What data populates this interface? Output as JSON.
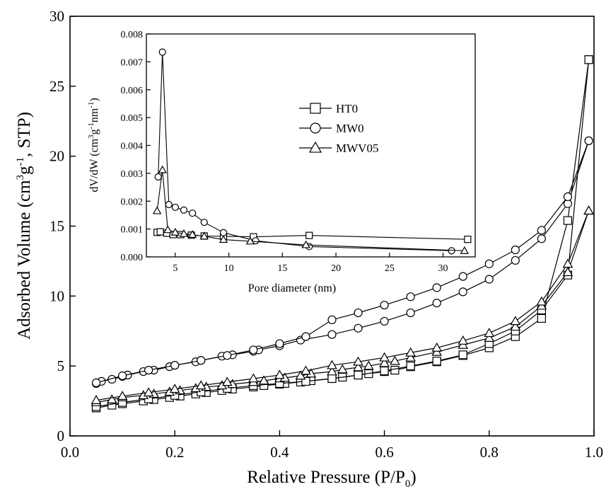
{
  "chart_data": [
    {
      "type": "line",
      "role": "main",
      "xlabel": "Relative Pressure (P/P",
      "xlabel_sub": "0",
      "xlabel_tail": ")",
      "ylabel_pre": "Adsorbed Volume (cm",
      "ylabel_sup": "3",
      "ylabel_mid": "g",
      "ylabel_sup2": "-1",
      "ylabel_tail": ", STP)",
      "xlim": [
        0.0,
        1.0
      ],
      "ylim": [
        0,
        30
      ],
      "xticks": [
        0.0,
        0.2,
        0.4,
        0.6,
        0.8,
        1.0
      ],
      "xtick_labels": [
        "0.0",
        "0.2",
        "0.4",
        "0.6",
        "0.8",
        "1.0"
      ],
      "yticks": [
        0,
        5,
        10,
        15,
        20,
        25,
        30
      ],
      "ytick_labels": [
        "0",
        "5",
        "10",
        "15",
        "20",
        "25",
        "30"
      ],
      "grid": false,
      "series": [
        {
          "name": "HT0",
          "marker": "square",
          "adsorption": {
            "x": [
              0.05,
              0.08,
              0.1,
              0.14,
              0.16,
              0.19,
              0.21,
              0.24,
              0.26,
              0.29,
              0.31,
              0.35,
              0.37,
              0.4,
              0.41,
              0.44,
              0.46,
              0.5,
              0.52,
              0.55,
              0.57,
              0.6,
              0.62,
              0.65,
              0.7,
              0.75,
              0.8,
              0.85,
              0.9,
              0.95,
              0.99
            ],
            "y": [
              2.0,
              2.2,
              2.3,
              2.5,
              2.6,
              2.75,
              2.85,
              3.0,
              3.1,
              3.25,
              3.35,
              3.5,
              3.6,
              3.7,
              3.75,
              3.85,
              3.95,
              4.1,
              4.2,
              4.35,
              4.45,
              4.6,
              4.7,
              4.95,
              5.3,
              5.75,
              6.3,
              7.1,
              8.4,
              15.4,
              26.9
            ]
          },
          "desorption": {
            "x": [
              0.99,
              0.95,
              0.9,
              0.85,
              0.8,
              0.75,
              0.7,
              0.65,
              0.6,
              0.55,
              0.5,
              0.45,
              0.4,
              0.35,
              0.3,
              0.25,
              0.2,
              0.15,
              0.1,
              0.05
            ],
            "y": [
              26.9,
              11.5,
              9.0,
              7.5,
              6.6,
              5.8,
              5.35,
              5.0,
              4.65,
              4.35,
              4.1,
              3.9,
              3.75,
              3.6,
              3.4,
              3.15,
              2.9,
              2.65,
              2.4,
              2.1
            ]
          }
        },
        {
          "name": "MW0",
          "marker": "circle",
          "adsorption": {
            "x": [
              0.05,
              0.06,
              0.08,
              0.1,
              0.11,
              0.14,
              0.16,
              0.19,
              0.2,
              0.24,
              0.25,
              0.29,
              0.31,
              0.35,
              0.36,
              0.4,
              0.44,
              0.5,
              0.55,
              0.6,
              0.65,
              0.7,
              0.75,
              0.8,
              0.85,
              0.9,
              0.95,
              0.99
            ],
            "y": [
              3.75,
              3.9,
              4.05,
              4.25,
              4.35,
              4.6,
              4.7,
              4.95,
              5.05,
              5.3,
              5.4,
              5.7,
              5.8,
              6.05,
              6.15,
              6.45,
              6.85,
              7.25,
              7.7,
              8.2,
              8.8,
              9.5,
              10.3,
              11.2,
              12.55,
              14.1,
              16.6,
              21.1
            ]
          },
          "desorption": {
            "x": [
              0.99,
              0.95,
              0.9,
              0.85,
              0.8,
              0.75,
              0.7,
              0.65,
              0.6,
              0.55,
              0.5,
              0.45,
              0.4,
              0.35,
              0.3,
              0.25,
              0.2,
              0.15,
              0.1,
              0.05
            ],
            "y": [
              21.1,
              17.1,
              14.7,
              13.3,
              12.3,
              11.4,
              10.6,
              9.95,
              9.35,
              8.8,
              8.3,
              7.1,
              6.6,
              6.15,
              5.75,
              5.4,
              5.05,
              4.7,
              4.3,
              3.8
            ]
          }
        },
        {
          "name": "MWV05",
          "marker": "triangle",
          "adsorption": {
            "x": [
              0.05,
              0.08,
              0.1,
              0.14,
              0.16,
              0.19,
              0.21,
              0.24,
              0.26,
              0.29,
              0.31,
              0.35,
              0.37,
              0.4,
              0.41,
              0.44,
              0.46,
              0.5,
              0.52,
              0.55,
              0.57,
              0.6,
              0.62,
              0.65,
              0.7,
              0.75,
              0.8,
              0.85,
              0.9,
              0.95,
              0.99
            ],
            "y": [
              2.4,
              2.6,
              2.75,
              2.9,
              3.0,
              3.15,
              3.25,
              3.4,
              3.5,
              3.6,
              3.7,
              3.85,
              3.95,
              4.1,
              4.15,
              4.3,
              4.45,
              4.6,
              4.75,
              4.9,
              5.0,
              5.2,
              5.35,
              5.6,
              6.0,
              6.5,
              7.0,
              7.8,
              9.3,
              11.7,
              16.1
            ]
          },
          "desorption": {
            "x": [
              0.99,
              0.95,
              0.9,
              0.85,
              0.8,
              0.75,
              0.7,
              0.65,
              0.6,
              0.55,
              0.5,
              0.45,
              0.4,
              0.35,
              0.3,
              0.25,
              0.2,
              0.15,
              0.1,
              0.05
            ],
            "y": [
              16.1,
              12.3,
              9.6,
              8.2,
              7.35,
              6.8,
              6.3,
              5.95,
              5.6,
              5.3,
              5.05,
              4.65,
              4.35,
              4.1,
              3.85,
              3.6,
              3.35,
              3.1,
              2.85,
              2.55
            ]
          }
        }
      ]
    },
    {
      "type": "line",
      "role": "inset",
      "xlabel": "Pore diameter (nm)",
      "ylabel_pre": "dV/dW (cm",
      "ylabel_sup": "3",
      "ylabel_mid": "g",
      "ylabel_sup2": "-1",
      "ylabel_mid2": "nm",
      "ylabel_sup3": "-1",
      "ylabel_tail": ")",
      "xlim": [
        2.3,
        33
      ],
      "ylim": [
        0.0,
        0.008
      ],
      "xticks": [
        5,
        10,
        15,
        20,
        25,
        30
      ],
      "xtick_labels": [
        "5",
        "10",
        "15",
        "20",
        "25",
        "30"
      ],
      "yticks": [
        0.0,
        0.001,
        0.002,
        0.003,
        0.004,
        0.005,
        0.006,
        0.007,
        0.008
      ],
      "ytick_labels": [
        "0.000",
        "0.001",
        "0.002",
        "0.003",
        "0.004",
        "0.005",
        "0.006",
        "0.007",
        "0.008"
      ],
      "grid": false,
      "legend_position": "center",
      "series": [
        {
          "name": "HT0",
          "marker": "square",
          "x": [
            3.3,
            3.6,
            4.2,
            4.8,
            5.5,
            6.5,
            7.7,
            9.5,
            12.3,
            17.5,
            32.3
          ],
          "y": [
            0.00088,
            0.0009,
            0.00085,
            0.0008,
            0.0008,
            0.00078,
            0.00075,
            0.00074,
            0.00072,
            0.00077,
            0.00063
          ]
        },
        {
          "name": "MW0",
          "marker": "circle",
          "x": [
            3.4,
            3.8,
            4.4,
            5.0,
            5.8,
            6.6,
            7.7,
            9.5,
            12.5,
            17.5,
            30.8
          ],
          "y": [
            0.00287,
            0.00735,
            0.00188,
            0.00178,
            0.00168,
            0.00157,
            0.00124,
            0.00087,
            0.00058,
            0.00037,
            0.00022
          ]
        },
        {
          "name": "MWV05",
          "marker": "triangle",
          "x": [
            3.3,
            3.8,
            4.3,
            5.0,
            5.8,
            6.6,
            7.7,
            9.5,
            12.0,
            17.2,
            32.0
          ],
          "y": [
            0.00165,
            0.00312,
            0.00097,
            0.00088,
            0.00083,
            0.0008,
            0.00074,
            0.00062,
            0.00056,
            0.00043,
            0.00022
          ]
        }
      ]
    }
  ]
}
